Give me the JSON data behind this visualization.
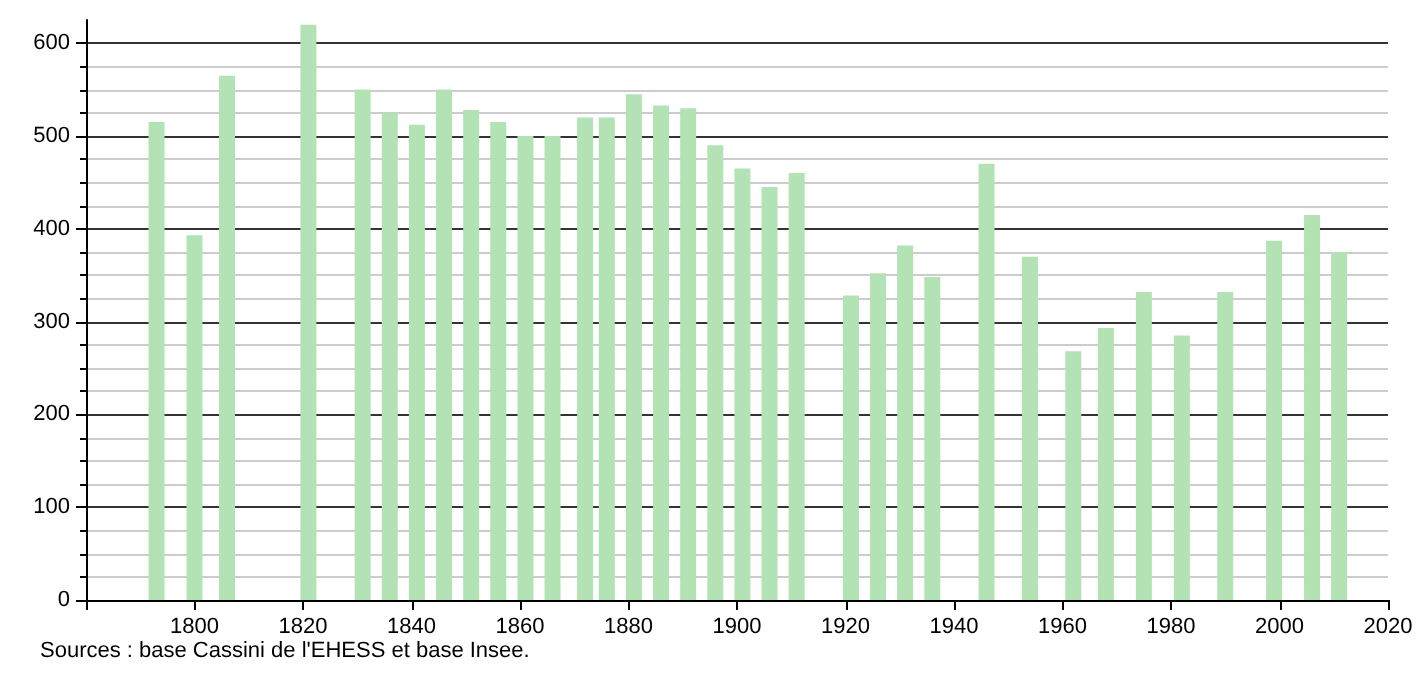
{
  "chart_data": {
    "type": "bar",
    "x": [
      1793,
      1800,
      1806,
      1821,
      1831,
      1836,
      1841,
      1846,
      1851,
      1856,
      1861,
      1866,
      1872,
      1876,
      1881,
      1886,
      1891,
      1896,
      1901,
      1906,
      1911,
      1921,
      1926,
      1931,
      1936,
      1946,
      1954,
      1962,
      1968,
      1975,
      1982,
      1990,
      1999,
      2006,
      2011
    ],
    "values": [
      515,
      393,
      565,
      620,
      550,
      525,
      512,
      550,
      528,
      515,
      500,
      500,
      520,
      520,
      545,
      533,
      530,
      490,
      465,
      445,
      460,
      328,
      352,
      382,
      348,
      470,
      370,
      268,
      293,
      332,
      285,
      332,
      387,
      415,
      375
    ],
    "color": "#b3e3b5",
    "xlim": [
      1780,
      2020
    ],
    "xticks": [
      {
        "value": 1780,
        "label": null
      },
      1800,
      1820,
      1840,
      1860,
      1880,
      1900,
      1920,
      1940,
      1960,
      1980,
      2000,
      2020
    ],
    "ylim": [
      0,
      625
    ],
    "yticks": [
      0,
      100,
      200,
      300,
      400,
      500,
      600
    ],
    "grid": "y",
    "annotations": [
      "Sources : base Cassini de l'EHESS et base Insee."
    ]
  }
}
